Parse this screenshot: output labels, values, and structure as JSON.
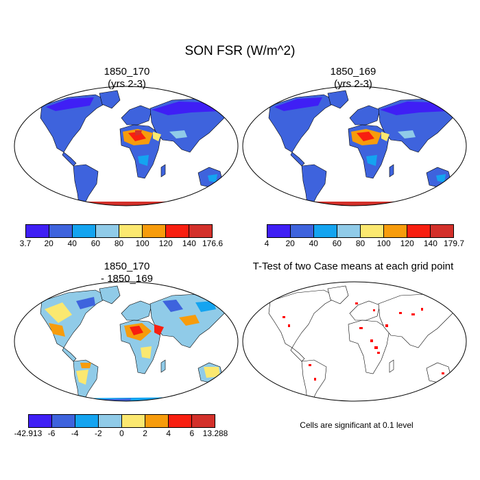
{
  "title": "SON FSR (W/m^2)",
  "panels": [
    {
      "line1": "1850_170",
      "line2": "(yrs 2-3)"
    },
    {
      "line1": "1850_169",
      "line2": "(yrs 2-3)"
    },
    {
      "line1": "1850_170",
      "line2": "- 1850_169"
    },
    {
      "line1": "T-Test of two Case means at each grid point",
      "line2": ""
    }
  ],
  "colorbars": [
    {
      "labels": [
        "3.7",
        "20",
        "40",
        "60",
        "80",
        "100",
        "120",
        "140",
        "176.6"
      ],
      "colors": [
        "#3f1ff5",
        "#3e63dd",
        "#14a4f0",
        "#90cbe8",
        "#fbe870",
        "#f79c0c",
        "#f81f10",
        "#d3302a"
      ]
    },
    {
      "labels": [
        "4",
        "20",
        "40",
        "60",
        "80",
        "100",
        "120",
        "140",
        "179.7"
      ],
      "colors": [
        "#3f1ff5",
        "#3e63dd",
        "#14a4f0",
        "#90cbe8",
        "#fbe870",
        "#f79c0c",
        "#f81f10",
        "#d3302a"
      ]
    },
    {
      "labels": [
        "-42.913",
        "-6",
        "-4",
        "-2",
        "0",
        "2",
        "4",
        "6",
        "13.288"
      ],
      "colors": [
        "#3f1ff5",
        "#3e63dd",
        "#14a4f0",
        "#90cbe8",
        "#fbe870",
        "#f79c0c",
        "#f81f10",
        "#d3302a"
      ]
    }
  ],
  "significance_note": "Cells are significant at 0.1 level",
  "significance_color": "#ff0000"
}
